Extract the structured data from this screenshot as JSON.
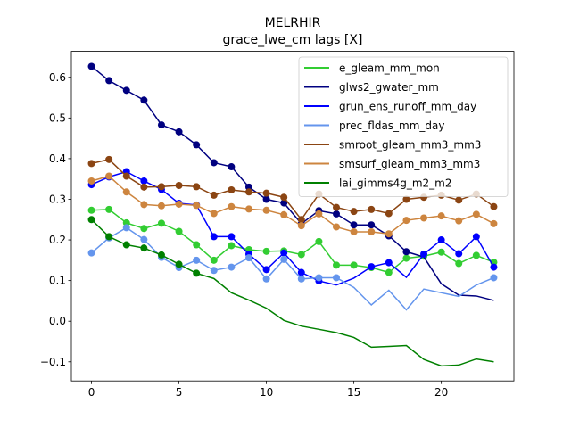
{
  "chart_data": {
    "type": "line",
    "title": "MELRHIR",
    "subtitle": "grace_lwe_cm lags [X]",
    "xlabel": "",
    "ylabel": "",
    "xlim": [
      -1.15,
      24.15
    ],
    "ylim": [
      -0.147,
      0.664
    ],
    "xticks": [
      0,
      5,
      10,
      15,
      20
    ],
    "yticks": [
      -0.1,
      0.0,
      0.1,
      0.2,
      0.3,
      0.4,
      0.5,
      0.6
    ],
    "ytick_labels": [
      "−0.1",
      "0.0",
      "0.1",
      "0.2",
      "0.3",
      "0.4",
      "0.5",
      "0.6"
    ],
    "legend_position": "top-right",
    "x": [
      0,
      1,
      2,
      3,
      4,
      5,
      6,
      7,
      8,
      9,
      10,
      11,
      12,
      13,
      14,
      15,
      16,
      17,
      18,
      19,
      20,
      21,
      22,
      23
    ],
    "series": [
      {
        "name": "e_gleam_mm_mon",
        "color": "#32cd32",
        "values": [
          0.273,
          0.275,
          0.242,
          0.228,
          0.241,
          0.221,
          0.188,
          0.15,
          0.186,
          0.176,
          0.172,
          0.173,
          0.164,
          0.196,
          0.138,
          0.138,
          0.132,
          0.12,
          0.155,
          0.16,
          0.17,
          0.142,
          0.162,
          0.145
        ],
        "markers": [
          0,
          1,
          2,
          3,
          4,
          5,
          6,
          7,
          8,
          9,
          10,
          11,
          12,
          13,
          14,
          15,
          16,
          17,
          18,
          19,
          20,
          21,
          22,
          23
        ]
      },
      {
        "name": "glws2_gwater_mm",
        "color": "#000080",
        "values": [
          0.627,
          0.592,
          0.568,
          0.544,
          0.483,
          0.466,
          0.434,
          0.39,
          0.38,
          0.33,
          0.3,
          0.291,
          0.24,
          0.272,
          0.264,
          0.237,
          0.237,
          0.21,
          0.171,
          0.158,
          0.092,
          0.064,
          0.062,
          0.051
        ],
        "markers": [
          0,
          1,
          2,
          3,
          4,
          5,
          6,
          7,
          8,
          9,
          10,
          11,
          12,
          13,
          14,
          15,
          16,
          17,
          18
        ]
      },
      {
        "name": "grun_ens_runoff_mm_day",
        "color": "#0000ff",
        "values": [
          0.336,
          0.355,
          0.368,
          0.345,
          0.324,
          0.29,
          0.286,
          0.208,
          0.208,
          0.165,
          0.127,
          0.168,
          0.12,
          0.099,
          0.089,
          0.106,
          0.134,
          0.144,
          0.108,
          0.165,
          0.2,
          0.166,
          0.208,
          0.133
        ],
        "markers": [
          0,
          1,
          2,
          3,
          4,
          5,
          6,
          7,
          8,
          9,
          10,
          11,
          12,
          13,
          16,
          17,
          19,
          20,
          21,
          22,
          23
        ]
      },
      {
        "name": "prec_fldas_mm_day",
        "color": "#6495ed",
        "values": [
          0.168,
          0.205,
          0.23,
          0.201,
          0.157,
          0.132,
          0.15,
          0.125,
          0.133,
          0.156,
          0.104,
          0.152,
          0.104,
          0.107,
          0.107,
          0.083,
          0.04,
          0.076,
          0.028,
          0.079,
          0.07,
          0.061,
          0.089,
          0.107
        ],
        "markers": [
          0,
          1,
          2,
          3,
          4,
          5,
          6,
          7,
          8,
          9,
          10,
          11,
          12,
          13,
          14,
          23
        ]
      },
      {
        "name": "smroot_gleam_mm3_mm3",
        "color": "#8b4513",
        "values": [
          0.388,
          0.398,
          0.357,
          0.33,
          0.331,
          0.334,
          0.331,
          0.31,
          0.323,
          0.318,
          0.315,
          0.305,
          0.25,
          0.313,
          0.28,
          0.27,
          0.275,
          0.265,
          0.3,
          0.305,
          0.31,
          0.298,
          0.313,
          0.282
        ],
        "markers": [
          0,
          1,
          2,
          3,
          4,
          5,
          6,
          7,
          8,
          9,
          10,
          11,
          12,
          13,
          14,
          15,
          16,
          17,
          18,
          19,
          20,
          21,
          22,
          23
        ]
      },
      {
        "name": "smsurf_gleam_mm3_mm3",
        "color": "#cd853f",
        "values": [
          0.345,
          0.357,
          0.318,
          0.287,
          0.284,
          0.288,
          0.285,
          0.265,
          0.282,
          0.276,
          0.273,
          0.262,
          0.235,
          0.264,
          0.232,
          0.22,
          0.22,
          0.215,
          0.248,
          0.254,
          0.259,
          0.247,
          0.263,
          0.24
        ],
        "markers": [
          0,
          1,
          2,
          3,
          4,
          5,
          6,
          7,
          8,
          9,
          10,
          11,
          12,
          13,
          14,
          15,
          16,
          17,
          18,
          19,
          20,
          21,
          22,
          23
        ]
      },
      {
        "name": "lai_gimms4g_m2_m2",
        "color": "#008000",
        "values": [
          0.25,
          0.208,
          0.188,
          0.18,
          0.163,
          0.14,
          0.118,
          0.105,
          0.07,
          0.052,
          0.032,
          0.002,
          -0.012,
          -0.02,
          -0.028,
          -0.04,
          -0.064,
          -0.062,
          -0.06,
          -0.094,
          -0.11,
          -0.108,
          -0.093,
          -0.1
        ],
        "markers": [
          0,
          1,
          2,
          3,
          4,
          5,
          6
        ]
      }
    ]
  }
}
